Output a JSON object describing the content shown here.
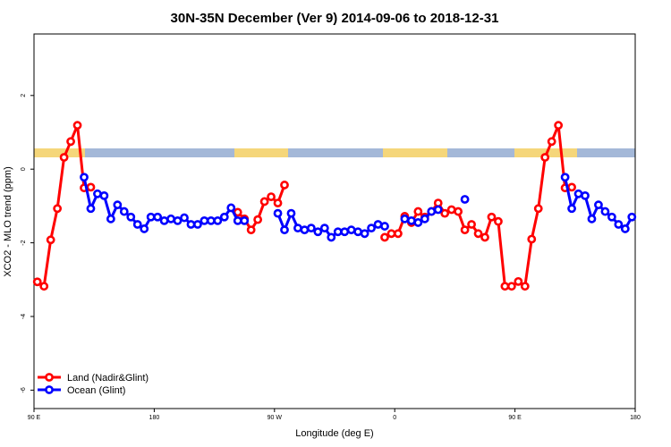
{
  "chart_data": {
    "type": "line",
    "title": "30N-35N December (Ver 9)   2014-09-06 to 2018-12-31",
    "xlabel": "Longitude (deg E)",
    "ylabel": "XCO2 - MLO trend (ppm)",
    "x": [
      92.5,
      97.5,
      102.5,
      107.5,
      112.5,
      117.5,
      122.5,
      127.5,
      132.5,
      137.5,
      142.5,
      147.5,
      152.5,
      157.5,
      162.5,
      167.5,
      172.5,
      177.5,
      182.5,
      187.5,
      192.5,
      197.5,
      202.5,
      207.5,
      212.5,
      217.5,
      222.5,
      227.5,
      232.5,
      237.5,
      242.5,
      247.5,
      252.5,
      257.5,
      262.5,
      267.5,
      272.5,
      277.5,
      282.5,
      287.5,
      292.5,
      297.5,
      302.5,
      307.5,
      312.5,
      317.5,
      322.5,
      327.5,
      332.5,
      337.5,
      342.5,
      347.5,
      352.5,
      357.5,
      362.5,
      367.5,
      372.5,
      377.5,
      382.5,
      387.5,
      392.5,
      397.5,
      402.5,
      407.5,
      412.5,
      417.5,
      422.5,
      427.5,
      432.5,
      437.5,
      442.5,
      447.5,
      452.5,
      457.5,
      462.5,
      467.5,
      472.5,
      477.5,
      482.5,
      487.5,
      492.5,
      497.5,
      502.5,
      507.5,
      512.5,
      517.5,
      522.5,
      527.5,
      532.5,
      537.5
    ],
    "series": [
      {
        "name": "Land (Nadir&Glint)",
        "color": "#ff0000",
        "values": [
          -3.06,
          -3.18,
          -1.92,
          -1.07,
          0.32,
          0.75,
          1.19,
          -0.51,
          -0.49,
          null,
          null,
          null,
          null,
          null,
          null,
          null,
          null,
          null,
          null,
          null,
          null,
          null,
          null,
          null,
          null,
          null,
          null,
          null,
          null,
          null,
          -1.17,
          -1.35,
          -1.65,
          -1.37,
          -0.88,
          -0.75,
          -0.92,
          -0.43,
          null,
          null,
          null,
          null,
          null,
          null,
          null,
          null,
          null,
          null,
          null,
          null,
          null,
          null,
          -1.85,
          -1.75,
          -1.75,
          -1.28,
          -1.45,
          -1.15,
          -1.3,
          -1.15,
          -0.92,
          -1.2,
          -1.1,
          -1.15,
          -1.65,
          -1.5,
          -1.75,
          -1.85,
          -1.3,
          -1.42,
          -3.18,
          -3.18,
          -3.05,
          -3.18,
          -1.9,
          -1.07,
          0.32,
          0.75,
          1.19,
          -0.51,
          -0.49,
          null,
          null,
          null,
          null,
          null,
          null,
          null,
          null,
          null
        ]
      },
      {
        "name": "Ocean (Glint)",
        "color": "#0000ff",
        "values": [
          null,
          null,
          null,
          null,
          null,
          null,
          null,
          -0.22,
          -1.07,
          -0.67,
          -0.72,
          -1.35,
          -0.97,
          -1.15,
          -1.3,
          -1.5,
          -1.62,
          -1.3,
          -1.3,
          -1.4,
          -1.35,
          -1.4,
          -1.32,
          -1.5,
          -1.5,
          -1.4,
          -1.4,
          -1.4,
          -1.3,
          -1.05,
          -1.4,
          -1.4,
          null,
          null,
          null,
          null,
          -1.2,
          -1.65,
          -1.2,
          -1.6,
          -1.65,
          -1.6,
          -1.7,
          -1.6,
          -1.85,
          -1.7,
          -1.7,
          -1.65,
          -1.7,
          -1.75,
          -1.6,
          -1.5,
          -1.55,
          null,
          null,
          -1.35,
          -1.4,
          -1.45,
          -1.35,
          -1.15,
          -1.1,
          null,
          null,
          null,
          -0.82,
          null,
          null,
          null,
          null,
          null,
          null,
          null,
          null,
          null,
          null,
          null,
          null,
          null,
          null,
          -0.22,
          -1.07,
          -0.67,
          -0.72,
          -1.35,
          -0.97,
          -1.15,
          -1.3,
          -1.5,
          -1.62,
          -1.3
        ]
      }
    ],
    "xlim": [
      90,
      540
    ],
    "xticks": [
      {
        "value": 90,
        "label": "90 E"
      },
      180,
      {
        "value": 270,
        "label": "90 W"
      },
      {
        "value": 360,
        "label": "0"
      },
      {
        "value": 450,
        "label": "90 E"
      },
      {
        "value": 540,
        "label": "180"
      }
    ],
    "ylim": [
      -6.5,
      3.67
    ],
    "yticks": [
      2,
      0,
      -2,
      -4,
      -6
    ],
    "legend": "bottomleft"
  }
}
